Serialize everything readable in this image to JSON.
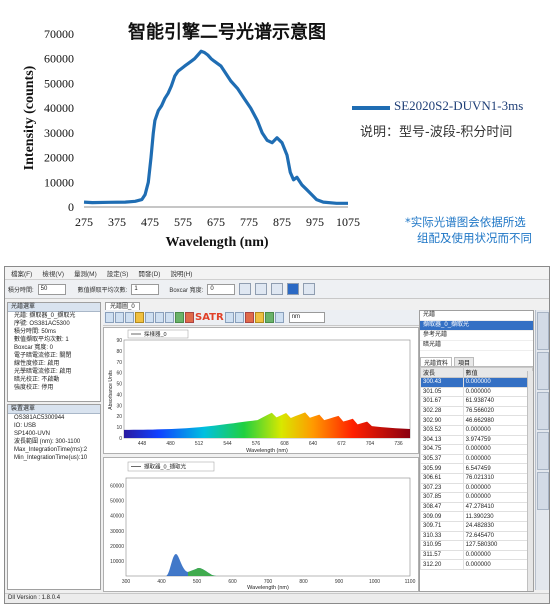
{
  "top_chart": {
    "title": "智能引擎二号光谱示意图",
    "ylabel": "Intensity (counts)",
    "xlabel": "Wavelength (nm)",
    "legend_series": "SE2020S2-DUVN1-3ms",
    "legend_description": "说明：型号-波段-积分时间",
    "note_line1": "*实际光谱图会依据所选",
    "note_line2": "组配及使用状况而不同",
    "line_color": "#1f6db3"
  },
  "chart_data": {
    "type": "line",
    "xlabel": "Wavelength (nm)",
    "ylabel": "Intensity (counts)",
    "xlim": [
      275,
      1075
    ],
    "ylim": [
      0,
      70000
    ],
    "x_ticks": [
      275,
      375,
      475,
      575,
      675,
      775,
      875,
      975,
      1075
    ],
    "y_ticks": [
      0,
      10000,
      20000,
      30000,
      40000,
      50000,
      60000,
      70000
    ],
    "x": [
      275,
      300,
      350,
      400,
      430,
      450,
      460,
      470,
      478,
      485,
      490,
      500,
      510,
      520,
      530,
      540,
      550,
      560,
      570,
      580,
      590,
      600,
      610,
      620,
      630,
      640,
      650,
      660,
      670,
      680,
      690,
      700,
      710,
      720,
      740,
      760,
      780,
      800,
      815,
      830,
      845,
      860,
      875,
      890,
      900,
      910,
      920,
      935,
      950,
      965,
      980,
      1000,
      1040,
      1075
    ],
    "series": [
      {
        "name": "SE2020S2-DUVN1-3ms",
        "values": [
          2000,
          1800,
          1900,
          2000,
          2300,
          3000,
          5000,
          10000,
          20000,
          30000,
          35000,
          39000,
          41000,
          44000,
          46000,
          49000,
          53000,
          55000,
          56000,
          57000,
          58000,
          59000,
          60000,
          61500,
          63000,
          62500,
          61500,
          60000,
          59000,
          58000,
          57000,
          55000,
          53000,
          51000,
          48000,
          44000,
          40000,
          35000,
          30000,
          27000,
          26000,
          28000,
          26000,
          21000,
          14000,
          11000,
          12000,
          9000,
          7000,
          5000,
          3000,
          2000,
          1500,
          1500
        ]
      }
    ],
    "grid": false
  },
  "app": {
    "menu": [
      "檔案(F)",
      "檢視(V)",
      "量測(M)",
      "設定(S)",
      "開發(D)",
      "說明(H)"
    ],
    "toolbar": {
      "integration_label": "積分時間:",
      "integration_value": "50",
      "average_label": "數值擷取平均次數:",
      "average_value": "1",
      "boxcar_label": "Boxcar 寬度:",
      "boxcar_value": "0"
    },
    "doc_tab": "光譜圖_0",
    "icon_text": "SATR",
    "nm_select": "nm",
    "left_top_header": "光譜選單",
    "left_top_items": [
      "光譜: 擷取器_0_擷取光",
      "序號: OS381AC5300",
      "積分時間: 50ms",
      "數值擷取平均次數: 1",
      "Boxcar 寬度: 0",
      "電子暗電流修正: 關閉",
      "線性度修正: 啟用",
      "光學暗電流修正: 啟用",
      "暗光校正: 不啟動",
      "強度校正: 停用"
    ],
    "left_bottom_header": "裝置選單",
    "left_bottom_items": [
      "OS381AC5300944",
      "IO: USB",
      "SP1400-UVN",
      "波長範圍 (nm): 300-1100",
      "Max_IntegrationTime(ms):2",
      "Min_IntegrationTime(us):10"
    ],
    "upper_plot": {
      "legend": "採樣器_0",
      "ylabel": "Absorbance Units",
      "xlabel": "Wavelength (nm)",
      "x_ticks": [
        "448",
        "480",
        "512",
        "544",
        "576",
        "608",
        "640",
        "672",
        "704",
        "736"
      ],
      "y_ticks": [
        "0",
        "10",
        "20",
        "30",
        "40",
        "50",
        "60",
        "70",
        "80",
        "90"
      ]
    },
    "lower_plot": {
      "legend": "擷取器_0_擷取光",
      "xlabel": "Wavelength (nm)",
      "x_ticks": [
        "300",
        "400",
        "500",
        "600",
        "700",
        "800",
        "900",
        "1000",
        "1100"
      ],
      "y_ticks": [
        "10000",
        "20000",
        "30000",
        "40000",
        "50000",
        "60000"
      ]
    },
    "right_list_items": [
      "光譜",
      "擷取器_0_擷取光",
      "參考光譜",
      "暗光譜"
    ],
    "right_tabs": [
      "光譜資料",
      "項目"
    ],
    "table_headers": [
      "波長",
      "數值"
    ],
    "table_rows": [
      [
        "300.43",
        "0.000000"
      ],
      [
        "301.05",
        "0.000000"
      ],
      [
        "301.67",
        "61.938740"
      ],
      [
        "302.28",
        "76.566020"
      ],
      [
        "302.90",
        "46.662980"
      ],
      [
        "303.52",
        "0.000000"
      ],
      [
        "304.13",
        "3.974759"
      ],
      [
        "304.75",
        "0.000000"
      ],
      [
        "305.37",
        "0.000000"
      ],
      [
        "305.99",
        "6.547459"
      ],
      [
        "306.61",
        "76.021310"
      ],
      [
        "307.23",
        "0.000000"
      ],
      [
        "307.85",
        "0.000000"
      ],
      [
        "308.47",
        "47.278410"
      ],
      [
        "309.09",
        "11.390230"
      ],
      [
        "309.71",
        "24.482830"
      ],
      [
        "310.33",
        "72.645470"
      ],
      [
        "310.95",
        "127.580300"
      ],
      [
        "311.57",
        "0.000000"
      ],
      [
        "312.20",
        "0.000000"
      ]
    ],
    "status": "Dll Version : 1.8.0.4"
  }
}
